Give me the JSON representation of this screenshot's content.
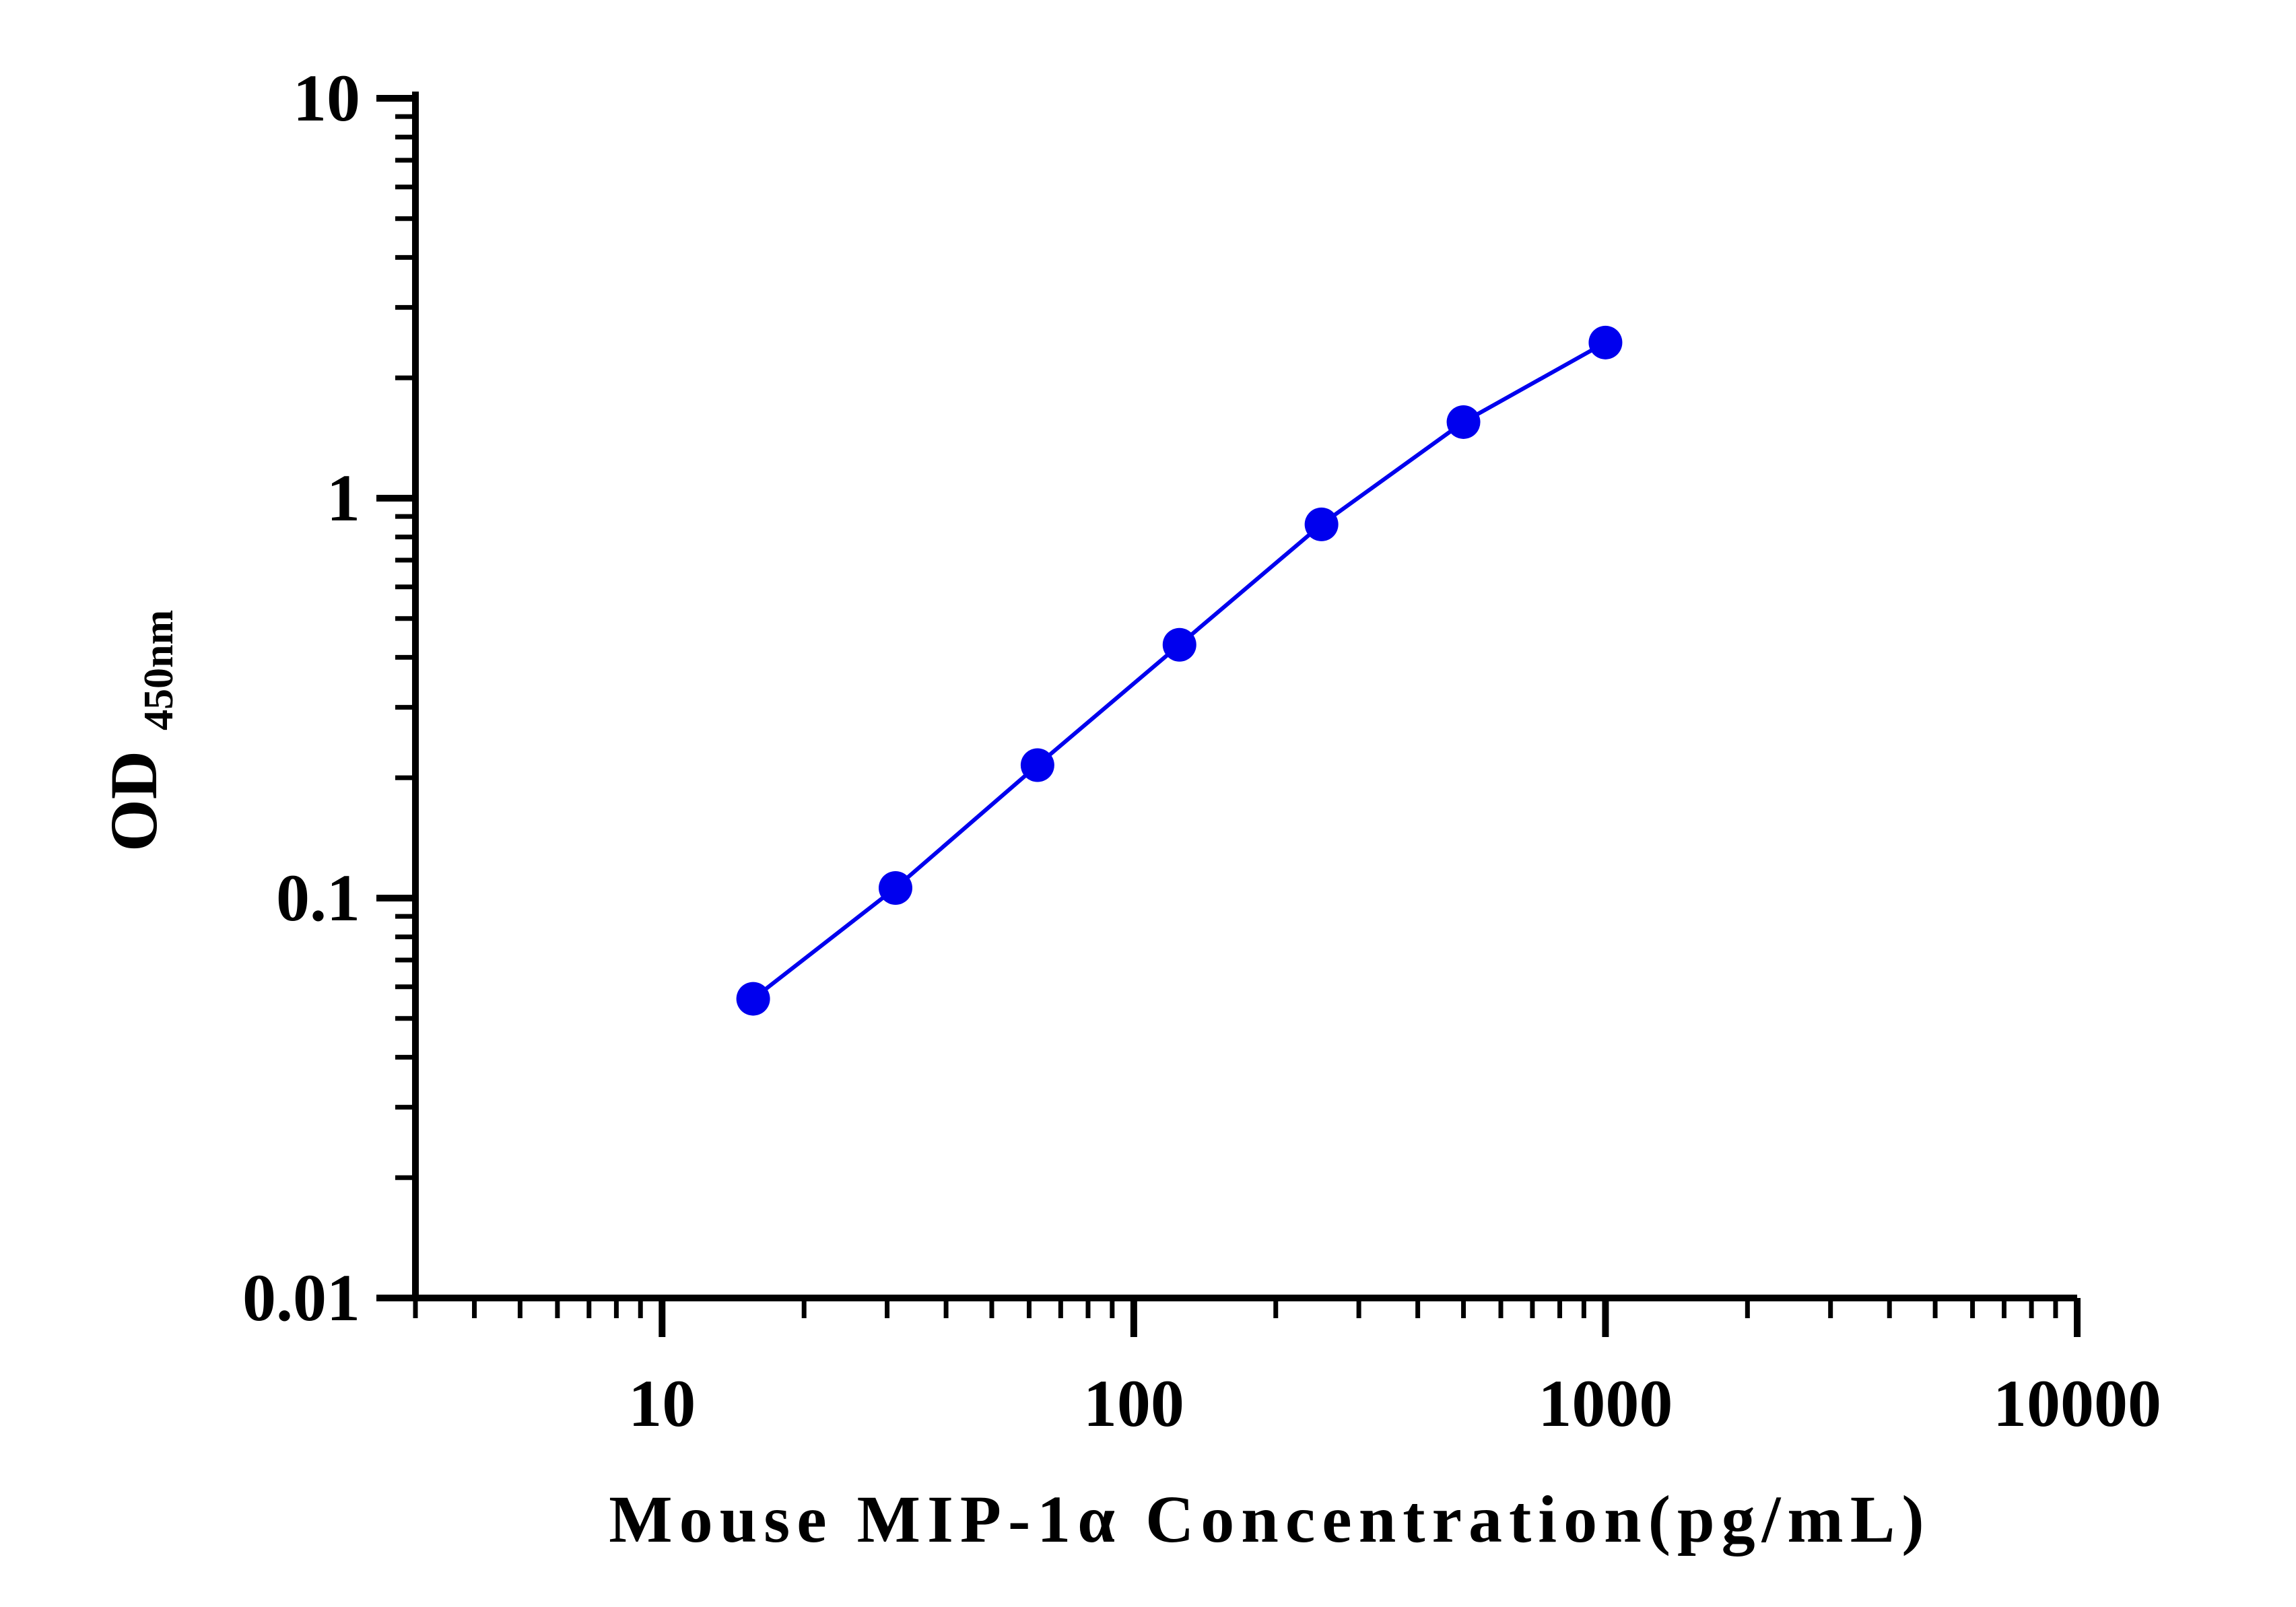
{
  "chart_data": {
    "type": "line",
    "title": "",
    "xlabel": "Mouse MIP-1α Concentration(pg/mL)",
    "ylabel": {
      "main": "OD",
      "subscript": "450nm"
    },
    "x_scale": "log",
    "y_scale": "log",
    "xlim": [
      3,
      10000
    ],
    "ylim": [
      0.01,
      10
    ],
    "x_ticks": [
      {
        "value": 10,
        "label": "10"
      },
      {
        "value": 100,
        "label": "100"
      },
      {
        "value": 1000,
        "label": "1000"
      },
      {
        "value": 10000,
        "label": "10000"
      }
    ],
    "y_ticks": [
      {
        "value": 0.01,
        "label": "0.01"
      },
      {
        "value": 0.1,
        "label": "0.1"
      },
      {
        "value": 1,
        "label": "1"
      },
      {
        "value": 10,
        "label": "10"
      }
    ],
    "grid": false,
    "legend": "none",
    "series": [
      {
        "color": "#0000ee",
        "marker": "circle",
        "x": [
          15.6,
          31.25,
          62.5,
          125,
          250,
          500,
          1000
        ],
        "y": [
          0.056,
          0.106,
          0.215,
          0.43,
          0.86,
          1.55,
          2.45
        ]
      }
    ]
  }
}
